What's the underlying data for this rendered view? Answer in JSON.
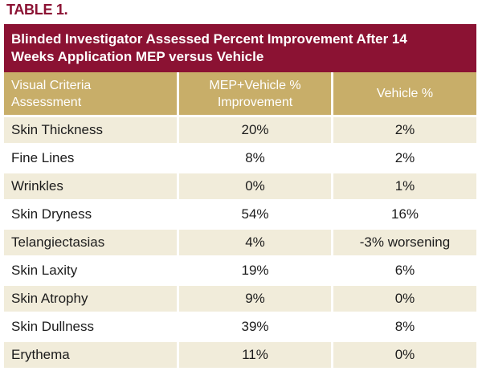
{
  "title": "TABLE 1.",
  "colors": {
    "maroon": "#8B1233",
    "gold": "#C8AE69",
    "cream": "#F1ECDA",
    "text": "#1C1C1C",
    "background": "#FFFFFF"
  },
  "table": {
    "caption": "Blinded Investigator Assessed Percent Improvement After 14\nWeeks Application MEP versus Vehicle",
    "columns": {
      "criteria": "Visual Criteria\nAssessment",
      "mep": "MEP+Vehicle %\nImprovement",
      "vehicle": "Vehicle %"
    },
    "rows": [
      {
        "criteria": "Skin Thickness",
        "mep": "20%",
        "vehicle": "2%"
      },
      {
        "criteria": "Fine Lines",
        "mep": "8%",
        "vehicle": "2%"
      },
      {
        "criteria": "Wrinkles",
        "mep": "0%",
        "vehicle": "1%"
      },
      {
        "criteria": "Skin Dryness",
        "mep": "54%",
        "vehicle": "16%"
      },
      {
        "criteria": "Telangiectasias",
        "mep": "4%",
        "vehicle": "-3% worsening"
      },
      {
        "criteria": "Skin Laxity",
        "mep": "19%",
        "vehicle": "6%"
      },
      {
        "criteria": "Skin Atrophy",
        "mep": "9%",
        "vehicle": "0%"
      },
      {
        "criteria": "Skin Dullness",
        "mep": "39%",
        "vehicle": "8%"
      },
      {
        "criteria": "Erythema",
        "mep": "11%",
        "vehicle": "0%"
      }
    ]
  }
}
